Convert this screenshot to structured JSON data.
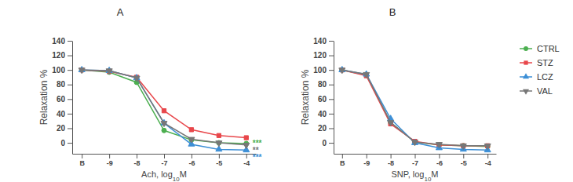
{
  "chart_data": [
    {
      "type": "line",
      "title": "A",
      "x_label": "Ach, log10M",
      "y_label": "Relaxation %",
      "categories": [
        "B",
        "-9",
        "-8",
        "-7",
        "-6",
        "-5",
        "-4"
      ],
      "ylim": [
        -15,
        140
      ],
      "yticks": [
        0,
        20,
        40,
        60,
        80,
        100,
        120,
        140
      ],
      "series": [
        {
          "color": "#4caf50",
          "marker": "circle",
          "values": [
            100,
            97,
            83,
            17,
            4,
            0,
            -1
          ],
          "annotation": "***"
        },
        {
          "color": "#e8474b",
          "marker": "square",
          "values": [
            100,
            98,
            90,
            44,
            18,
            10,
            7
          ]
        },
        {
          "color": "#3d8fd6",
          "marker": "triangle-up",
          "values": [
            100,
            99,
            89,
            27,
            -2,
            -9,
            -10
          ],
          "annotation": "***"
        },
        {
          "color": "#777777",
          "marker": "triangle-down",
          "values": [
            100,
            99,
            89,
            27,
            5,
            0,
            -3
          ],
          "annotation": "**"
        }
      ]
    },
    {
      "type": "line",
      "title": "B",
      "x_label": "SNP, log10M",
      "y_label": "Relaxation %",
      "categories": [
        "B",
        "-9",
        "-8",
        "-7",
        "-6",
        "-5",
        "-4"
      ],
      "ylim": [
        -15,
        140
      ],
      "yticks": [
        0,
        20,
        40,
        60,
        80,
        100,
        120,
        140
      ],
      "legend": "right",
      "series": [
        {
          "name": "CTRL",
          "color": "#4caf50",
          "marker": "circle",
          "values": [
            100,
            93,
            28,
            1,
            -3,
            -4,
            -5
          ]
        },
        {
          "name": "STZ",
          "color": "#e8474b",
          "marker": "square",
          "values": [
            100,
            92,
            26,
            2,
            -3,
            -4,
            -4
          ]
        },
        {
          "name": "LCZ",
          "color": "#3d8fd6",
          "marker": "triangle-up",
          "values": [
            100,
            94,
            33,
            0,
            -7,
            -9,
            -10
          ]
        },
        {
          "name": "VAL",
          "color": "#777777",
          "marker": "triangle-down",
          "values": [
            100,
            94,
            28,
            1,
            -2,
            -4,
            -4
          ]
        }
      ]
    }
  ]
}
